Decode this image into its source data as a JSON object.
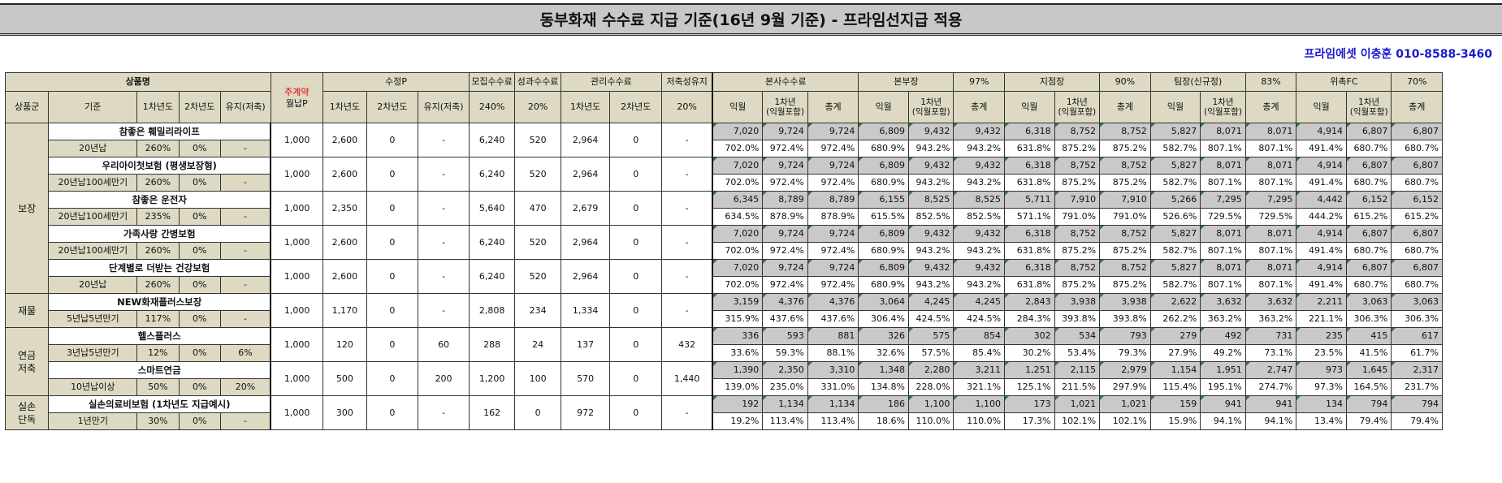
{
  "title": "동부화재 수수료 지급 기준(16년 9월 기준) - 프라임선지급 적용",
  "contact": "프라임에셋 이충훈 010-8588-3460",
  "header": {
    "product": "상품명",
    "group": "상품군",
    "basis": "기준",
    "y1": "1차년도",
    "y2": "2차년도",
    "keep": "유지(저축)",
    "monthly_top": "주계약",
    "monthly_bottom": "월납P",
    "sujeong": "수정P",
    "sujeong_y1": "1차년도",
    "sujeong_y2": "2차년도",
    "sujeong_keep": "유지(저축)",
    "mojib": "모집수수료",
    "mojib_rate": "240%",
    "seonggwa": "성과수수료",
    "seonggwa_rate": "20%",
    "gwanri": "관리수수료",
    "gwanri_y1": "1차년도",
    "gwanri_y2": "2차년도",
    "jeochuk": "저축성유지",
    "jeochuk_rate": "20%",
    "groups": [
      {
        "name": "본사수수료",
        "rate": "",
        "c1": "익월",
        "c2": "1차년\n(익월포함)",
        "c3": "총계"
      },
      {
        "name": "본부장",
        "rate": "97%",
        "c1": "익월",
        "c2": "1차년\n(익월포함)",
        "c3": "총계"
      },
      {
        "name": "지점장",
        "rate": "90%",
        "c1": "익월",
        "c2": "1차년\n(익월포함)",
        "c3": "총계"
      },
      {
        "name": "팀장(신규정)",
        "rate": "83%",
        "c1": "익월",
        "c2": "1차년\n(익월포함)",
        "c3": "총계"
      },
      {
        "name": "위촉FC",
        "rate": "70%",
        "c1": "익월",
        "c2": "1차년\n(익월포함)",
        "c3": "총계"
      }
    ]
  },
  "categories": [
    {
      "label": "보장",
      "span": 5
    },
    {
      "label": "재물",
      "span": 1
    },
    {
      "label": "연금\n저축",
      "span": 2
    },
    {
      "label": "실손\n단독",
      "span": 1
    }
  ],
  "rows": [
    {
      "name": "참좋은 훼밀리라이프",
      "basis": "20년납",
      "y1": "260%",
      "y2": "0%",
      "keep": "-",
      "monthly": "1,000",
      "sp1": "2,600",
      "sp2": "0",
      "spk": "-",
      "mojib": "6,240",
      "seonggwa": "520",
      "g1": "2,964",
      "g2": "0",
      "jc": "-",
      "amt": [
        "7,020",
        "9,724",
        "9,724",
        "6,809",
        "9,432",
        "9,432",
        "6,318",
        "8,752",
        "8,752",
        "5,827",
        "8,071",
        "8,071",
        "4,914",
        "6,807",
        "6,807"
      ],
      "pct": [
        "702.0%",
        "972.4%",
        "972.4%",
        "680.9%",
        "943.2%",
        "943.2%",
        "631.8%",
        "875.2%",
        "875.2%",
        "582.7%",
        "807.1%",
        "807.1%",
        "491.4%",
        "680.7%",
        "680.7%"
      ]
    },
    {
      "name": "우리아이첫보험 (평생보장형)",
      "basis": "20년납100세만기",
      "y1": "260%",
      "y2": "0%",
      "keep": "-",
      "monthly": "1,000",
      "sp1": "2,600",
      "sp2": "0",
      "spk": "-",
      "mojib": "6,240",
      "seonggwa": "520",
      "g1": "2,964",
      "g2": "0",
      "jc": "-",
      "amt": [
        "7,020",
        "9,724",
        "9,724",
        "6,809",
        "9,432",
        "9,432",
        "6,318",
        "8,752",
        "8,752",
        "5,827",
        "8,071",
        "8,071",
        "4,914",
        "6,807",
        "6,807"
      ],
      "pct": [
        "702.0%",
        "972.4%",
        "972.4%",
        "680.9%",
        "943.2%",
        "943.2%",
        "631.8%",
        "875.2%",
        "875.2%",
        "582.7%",
        "807.1%",
        "807.1%",
        "491.4%",
        "680.7%",
        "680.7%"
      ]
    },
    {
      "name": "참좋은 운전자",
      "basis": "20년납100세만기",
      "y1": "235%",
      "y2": "0%",
      "keep": "-",
      "monthly": "1,000",
      "sp1": "2,350",
      "sp2": "0",
      "spk": "-",
      "mojib": "5,640",
      "seonggwa": "470",
      "g1": "2,679",
      "g2": "0",
      "jc": "-",
      "amt": [
        "6,345",
        "8,789",
        "8,789",
        "6,155",
        "8,525",
        "8,525",
        "5,711",
        "7,910",
        "7,910",
        "5,266",
        "7,295",
        "7,295",
        "4,442",
        "6,152",
        "6,152"
      ],
      "pct": [
        "634.5%",
        "878.9%",
        "878.9%",
        "615.5%",
        "852.5%",
        "852.5%",
        "571.1%",
        "791.0%",
        "791.0%",
        "526.6%",
        "729.5%",
        "729.5%",
        "444.2%",
        "615.2%",
        "615.2%"
      ]
    },
    {
      "name": "가족사랑 간병보험",
      "basis": "20년납100세만기",
      "y1": "260%",
      "y2": "0%",
      "keep": "-",
      "monthly": "1,000",
      "sp1": "2,600",
      "sp2": "0",
      "spk": "-",
      "mojib": "6,240",
      "seonggwa": "520",
      "g1": "2,964",
      "g2": "0",
      "jc": "-",
      "amt": [
        "7,020",
        "9,724",
        "9,724",
        "6,809",
        "9,432",
        "9,432",
        "6,318",
        "8,752",
        "8,752",
        "5,827",
        "8,071",
        "8,071",
        "4,914",
        "6,807",
        "6,807"
      ],
      "pct": [
        "702.0%",
        "972.4%",
        "972.4%",
        "680.9%",
        "943.2%",
        "943.2%",
        "631.8%",
        "875.2%",
        "875.2%",
        "582.7%",
        "807.1%",
        "807.1%",
        "491.4%",
        "680.7%",
        "680.7%"
      ]
    },
    {
      "name": "단계별로 더받는 건강보험",
      "basis": "20년납",
      "y1": "260%",
      "y2": "0%",
      "keep": "-",
      "monthly": "1,000",
      "sp1": "2,600",
      "sp2": "0",
      "spk": "-",
      "mojib": "6,240",
      "seonggwa": "520",
      "g1": "2,964",
      "g2": "0",
      "jc": "-",
      "amt": [
        "7,020",
        "9,724",
        "9,724",
        "6,809",
        "9,432",
        "9,432",
        "6,318",
        "8,752",
        "8,752",
        "5,827",
        "8,071",
        "8,071",
        "4,914",
        "6,807",
        "6,807"
      ],
      "pct": [
        "702.0%",
        "972.4%",
        "972.4%",
        "680.9%",
        "943.2%",
        "943.2%",
        "631.8%",
        "875.2%",
        "875.2%",
        "582.7%",
        "807.1%",
        "807.1%",
        "491.4%",
        "680.7%",
        "680.7%"
      ]
    },
    {
      "name": "NEW화재플러스보장",
      "basis": "5년납5년만기",
      "y1": "117%",
      "y2": "0%",
      "keep": "-",
      "monthly": "1,000",
      "sp1": "1,170",
      "sp2": "0",
      "spk": "-",
      "mojib": "2,808",
      "seonggwa": "234",
      "g1": "1,334",
      "g2": "0",
      "jc": "-",
      "amt": [
        "3,159",
        "4,376",
        "4,376",
        "3,064",
        "4,245",
        "4,245",
        "2,843",
        "3,938",
        "3,938",
        "2,622",
        "3,632",
        "3,632",
        "2,211",
        "3,063",
        "3,063"
      ],
      "pct": [
        "315.9%",
        "437.6%",
        "437.6%",
        "306.4%",
        "424.5%",
        "424.5%",
        "284.3%",
        "393.8%",
        "393.8%",
        "262.2%",
        "363.2%",
        "363.2%",
        "221.1%",
        "306.3%",
        "306.3%"
      ]
    },
    {
      "name": "헬스플러스",
      "basis": "3년납5년만기",
      "y1": "12%",
      "y2": "0%",
      "keep": "6%",
      "monthly": "1,000",
      "sp1": "120",
      "sp2": "0",
      "spk": "60",
      "mojib": "288",
      "seonggwa": "24",
      "g1": "137",
      "g2": "0",
      "jc": "432",
      "amt": [
        "336",
        "593",
        "881",
        "326",
        "575",
        "854",
        "302",
        "534",
        "793",
        "279",
        "492",
        "731",
        "235",
        "415",
        "617"
      ],
      "pct": [
        "33.6%",
        "59.3%",
        "88.1%",
        "32.6%",
        "57.5%",
        "85.4%",
        "30.2%",
        "53.4%",
        "79.3%",
        "27.9%",
        "49.2%",
        "73.1%",
        "23.5%",
        "41.5%",
        "61.7%"
      ]
    },
    {
      "name": "스마트연금",
      "basis": "10년납이상",
      "y1": "50%",
      "y2": "0%",
      "keep": "20%",
      "monthly": "1,000",
      "sp1": "500",
      "sp2": "0",
      "spk": "200",
      "mojib": "1,200",
      "seonggwa": "100",
      "g1": "570",
      "g2": "0",
      "jc": "1,440",
      "amt": [
        "1,390",
        "2,350",
        "3,310",
        "1,348",
        "2,280",
        "3,211",
        "1,251",
        "2,115",
        "2,979",
        "1,154",
        "1,951",
        "2,747",
        "973",
        "1,645",
        "2,317"
      ],
      "pct": [
        "139.0%",
        "235.0%",
        "331.0%",
        "134.8%",
        "228.0%",
        "321.1%",
        "125.1%",
        "211.5%",
        "297.9%",
        "115.4%",
        "195.1%",
        "274.7%",
        "97.3%",
        "164.5%",
        "231.7%"
      ]
    },
    {
      "name": "실손의료비보험 (1차년도 지급예시)",
      "basis": "1년만기",
      "y1": "30%",
      "y2": "0%",
      "keep": "-",
      "monthly": "1,000",
      "sp1": "300",
      "sp2": "0",
      "spk": "-",
      "mojib": "162",
      "seonggwa": "0",
      "g1": "972",
      "g2": "0",
      "jc": "-",
      "amt": [
        "192",
        "1,134",
        "1,134",
        "186",
        "1,100",
        "1,100",
        "173",
        "1,021",
        "1,021",
        "159",
        "941",
        "941",
        "134",
        "794",
        "794"
      ],
      "pct": [
        "19.2%",
        "113.4%",
        "113.4%",
        "18.6%",
        "110.0%",
        "110.0%",
        "17.3%",
        "102.1%",
        "102.1%",
        "15.9%",
        "94.1%",
        "94.1%",
        "13.4%",
        "79.4%",
        "79.4%"
      ]
    }
  ]
}
